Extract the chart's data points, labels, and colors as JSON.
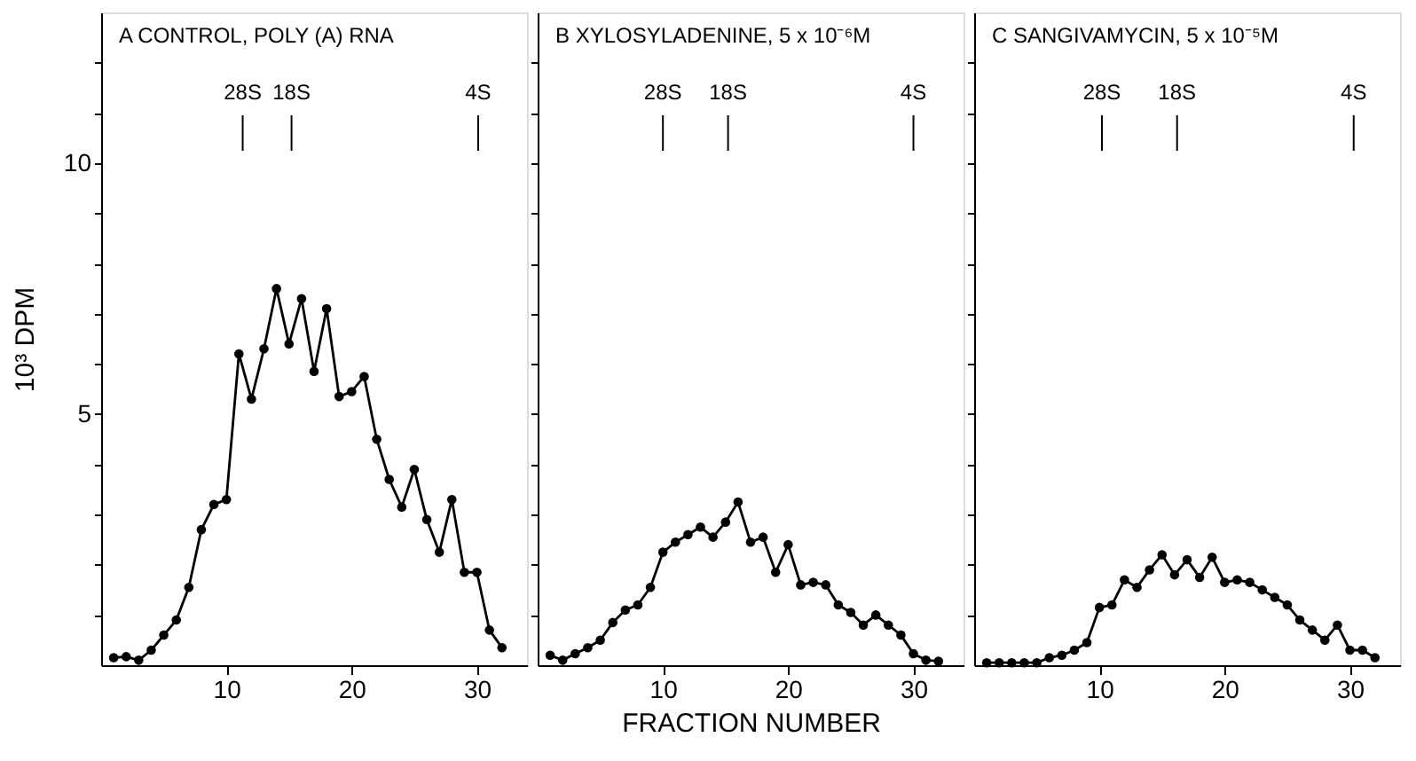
{
  "chart_data": [
    {
      "type": "line",
      "title": "A   CONTROL, POLY (A) RNA",
      "ylabel": "10³ DPM",
      "marker": "circle",
      "line_style": "solid",
      "grid": false,
      "x": [
        1,
        2,
        3,
        4,
        5,
        6,
        7,
        8,
        9,
        10,
        11,
        12,
        13,
        14,
        15,
        16,
        17,
        18,
        19,
        20,
        21,
        22,
        23,
        24,
        25,
        26,
        27,
        28,
        29,
        30,
        31,
        32
      ],
      "series": [
        {
          "color": "#000000",
          "values": [
            0.15,
            0.17,
            0.1,
            0.3,
            0.6,
            0.9,
            1.55,
            2.7,
            3.2,
            3.3,
            6.2,
            5.3,
            6.3,
            7.5,
            6.4,
            7.3,
            5.85,
            7.1,
            5.35,
            5.45,
            5.75,
            4.5,
            3.7,
            3.15,
            3.9,
            2.9,
            2.25,
            3.3,
            1.85,
            1.85,
            0.7,
            0.35
          ]
        }
      ],
      "xlim": [
        0,
        34
      ],
      "xticks": [
        10,
        20,
        30
      ],
      "ylim": [
        0,
        13
      ],
      "yticks": [
        {
          "value": 1,
          "label": null
        },
        {
          "value": 2,
          "label": null
        },
        {
          "value": 3,
          "label": null
        },
        {
          "value": 4,
          "label": null
        },
        5,
        {
          "value": 6,
          "label": null
        },
        {
          "value": 7,
          "label": null
        },
        {
          "value": 8,
          "label": null
        },
        {
          "value": 9,
          "label": null
        },
        10,
        {
          "value": 11,
          "label": null
        },
        {
          "value": 12,
          "label": null
        }
      ],
      "ref_lines": [
        {
          "axis": "x",
          "value": 11.3,
          "label": "28S"
        },
        {
          "axis": "x",
          "value": 15.2,
          "label": "18S"
        },
        {
          "axis": "x",
          "value": 30.1,
          "label": "4S"
        }
      ]
    },
    {
      "type": "line",
      "title": "B   XYLOSYLADENINE, 5 x 10⁻⁶M",
      "xlabel": "FRACTION NUMBER",
      "marker": "circle",
      "line_style": "solid",
      "grid": false,
      "tick_labels": "x",
      "x": [
        1,
        2,
        3,
        4,
        5,
        6,
        7,
        8,
        9,
        10,
        11,
        12,
        13,
        14,
        15,
        16,
        17,
        18,
        19,
        20,
        21,
        22,
        23,
        24,
        25,
        26,
        27,
        28,
        29,
        30,
        31,
        32
      ],
      "series": [
        {
          "color": "#000000",
          "values": [
            0.2,
            0.1,
            0.23,
            0.35,
            0.5,
            0.85,
            1.1,
            1.2,
            1.55,
            2.25,
            2.45,
            2.6,
            2.75,
            2.55,
            2.85,
            3.25,
            2.45,
            2.55,
            1.85,
            2.4,
            1.6,
            1.65,
            1.6,
            1.2,
            1.05,
            0.8,
            1.0,
            0.8,
            0.6,
            0.23,
            0.1,
            0.08
          ]
        }
      ],
      "xlim": [
        0,
        34
      ],
      "xticks": [
        10,
        20,
        30
      ],
      "ylim": [
        0,
        13
      ],
      "yticks": [
        {
          "value": 1,
          "label": null
        },
        {
          "value": 2,
          "label": null
        },
        {
          "value": 3,
          "label": null
        },
        {
          "value": 4,
          "label": null
        },
        {
          "value": 5,
          "label": null
        },
        {
          "value": 6,
          "label": null
        },
        {
          "value": 7,
          "label": null
        },
        {
          "value": 8,
          "label": null
        },
        {
          "value": 9,
          "label": null
        },
        {
          "value": 10,
          "label": null
        },
        {
          "value": 11,
          "label": null
        },
        {
          "value": 12,
          "label": null
        }
      ],
      "ref_lines": [
        {
          "axis": "x",
          "value": 10,
          "label": "28S"
        },
        {
          "axis": "x",
          "value": 15.2,
          "label": "18S"
        },
        {
          "axis": "x",
          "value": 30,
          "label": "4S"
        }
      ]
    },
    {
      "type": "line",
      "title": "C   SANGIVAMYCIN, 5 x 10⁻⁵M",
      "marker": "circle",
      "line_style": "solid",
      "grid": false,
      "tick_labels": "x",
      "x": [
        1,
        2,
        3,
        4,
        5,
        6,
        7,
        8,
        9,
        10,
        11,
        12,
        13,
        14,
        15,
        16,
        17,
        18,
        19,
        20,
        21,
        22,
        23,
        24,
        25,
        26,
        27,
        28,
        29,
        30,
        31,
        32
      ],
      "series": [
        {
          "color": "#000000",
          "values": [
            0.05,
            0.05,
            0.05,
            0.05,
            0.05,
            0.15,
            0.2,
            0.3,
            0.45,
            1.15,
            1.2,
            1.7,
            1.55,
            1.9,
            2.2,
            1.8,
            2.1,
            1.75,
            2.15,
            1.65,
            1.7,
            1.65,
            1.5,
            1.35,
            1.2,
            0.9,
            0.7,
            0.5,
            0.8,
            0.3,
            0.3,
            0.15
          ]
        }
      ],
      "xlim": [
        0,
        34
      ],
      "xticks": [
        10,
        20,
        30
      ],
      "ylim": [
        0,
        13
      ],
      "yticks": [
        {
          "value": 1,
          "label": null
        },
        {
          "value": 2,
          "label": null
        },
        {
          "value": 3,
          "label": null
        },
        {
          "value": 4,
          "label": null
        },
        {
          "value": 5,
          "label": null
        },
        {
          "value": 6,
          "label": null
        },
        {
          "value": 7,
          "label": null
        },
        {
          "value": 8,
          "label": null
        },
        {
          "value": 9,
          "label": null
        },
        {
          "value": 10,
          "label": null
        },
        {
          "value": 11,
          "label": null
        },
        {
          "value": 12,
          "label": null
        }
      ],
      "ref_lines": [
        {
          "axis": "x",
          "value": 10.2,
          "label": "28S"
        },
        {
          "axis": "x",
          "value": 16.2,
          "label": "18S"
        },
        {
          "axis": "x",
          "value": 30.3,
          "label": "4S"
        }
      ]
    }
  ]
}
